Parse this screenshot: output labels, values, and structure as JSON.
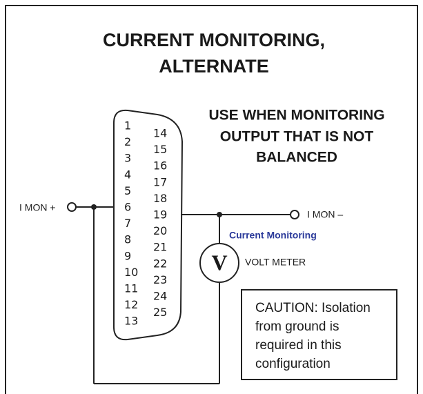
{
  "title": [
    "CURRENT MONITORING,",
    "ALTERNATE"
  ],
  "note": [
    "USE WHEN MONITORING",
    "OUTPUT THAT IS NOT",
    "BALANCED"
  ],
  "connector": {
    "pins_left": [
      "1",
      "2",
      "3",
      "4",
      "5",
      "6",
      "7",
      "8",
      "9",
      "10",
      "11",
      "12",
      "13"
    ],
    "pins_right": [
      "14",
      "15",
      "16",
      "17",
      "18",
      "19",
      "20",
      "21",
      "22",
      "23",
      "24",
      "25"
    ]
  },
  "labels": {
    "imon_plus": "I MON +",
    "imon_minus": "I MON –",
    "current_monitoring": "Current Monitoring",
    "meter_symbol": "V",
    "volt_meter": "VOLT METER"
  },
  "caution": [
    "CAUTION: Isolation",
    "from ground is",
    "required in this",
    "configuration"
  ]
}
